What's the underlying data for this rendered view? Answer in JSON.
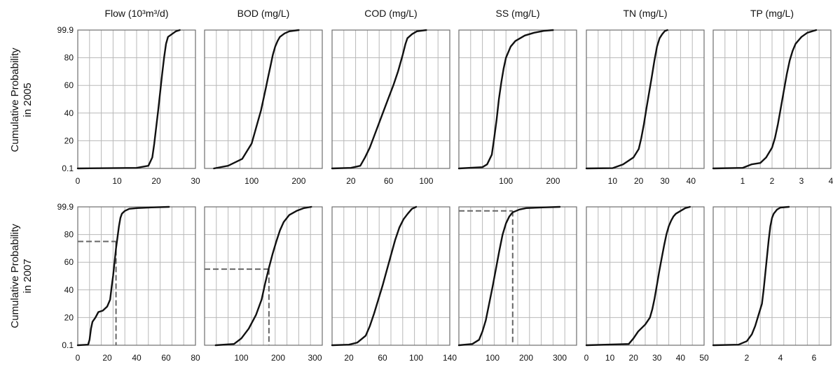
{
  "row_labels": [
    [
      "Cumulative Probability",
      "in 2005"
    ],
    [
      "Cumulative Probability",
      "in 2007"
    ]
  ],
  "chart_data": [
    {
      "type": "line",
      "title": "Flow (10³m³/d)",
      "year": "2005",
      "xlim": [
        0,
        30
      ],
      "xticks": [
        0,
        10,
        20,
        30
      ],
      "xtick_labels": [
        "0",
        "10",
        "20",
        "30"
      ],
      "ytick_labels": [
        "0.1",
        "20",
        "40",
        "60",
        "80",
        "99.9"
      ],
      "series": [
        {
          "x": [
            0,
            15,
            18,
            19,
            19.5,
            20,
            20.5,
            21,
            21.5,
            22,
            22.5,
            23,
            24,
            25,
            26
          ],
          "y": [
            0.1,
            0.5,
            2,
            8,
            18,
            30,
            42,
            55,
            68,
            80,
            90,
            95,
            97,
            99,
            99.9
          ]
        }
      ]
    },
    {
      "type": "line",
      "title": "BOD (mg/L)",
      "year": "2005",
      "xlim": [
        0,
        250
      ],
      "xticks": [
        100,
        200
      ],
      "xtick_labels": [
        "100",
        "200"
      ],
      "ytick_labels": [
        "0.1",
        "20",
        "40",
        "60",
        "80",
        "99.9"
      ],
      "series": [
        {
          "x": [
            20,
            50,
            80,
            100,
            110,
            120,
            125,
            130,
            135,
            140,
            145,
            150,
            155,
            160,
            170,
            180,
            200
          ],
          "y": [
            0.1,
            2,
            7,
            18,
            30,
            42,
            50,
            58,
            66,
            74,
            82,
            88,
            92,
            95,
            97.5,
            99,
            99.9
          ]
        }
      ]
    },
    {
      "type": "line",
      "title": "COD (mg/L)",
      "year": "2005",
      "xlim": [
        0,
        125
      ],
      "xticks": [
        20,
        60,
        100
      ],
      "xtick_labels": [
        "20",
        "60",
        "100"
      ],
      "ytick_labels": [
        "0.1",
        "20",
        "40",
        "60",
        "80",
        "99.9"
      ],
      "series": [
        {
          "x": [
            0,
            20,
            30,
            35,
            40,
            45,
            50,
            55,
            60,
            65,
            70,
            75,
            78,
            80,
            85,
            90,
            100
          ],
          "y": [
            0.1,
            0.5,
            2,
            8,
            15,
            24,
            33,
            42,
            51,
            60,
            70,
            82,
            90,
            94,
            97,
            99,
            99.9
          ]
        }
      ]
    },
    {
      "type": "line",
      "title": "SS (mg/L)",
      "year": "2005",
      "xlim": [
        0,
        250
      ],
      "xticks": [
        100,
        200
      ],
      "xtick_labels": [
        "100",
        "200"
      ],
      "ytick_labels": [
        "0.1",
        "20",
        "40",
        "60",
        "80",
        "99.9"
      ],
      "series": [
        {
          "x": [
            0,
            50,
            60,
            70,
            75,
            80,
            85,
            90,
            95,
            100,
            110,
            120,
            140,
            160,
            180,
            200
          ],
          "y": [
            0.1,
            1,
            3,
            10,
            22,
            35,
            50,
            62,
            72,
            80,
            88,
            92,
            96,
            98,
            99.3,
            99.9
          ]
        }
      ]
    },
    {
      "type": "line",
      "title": "TN (mg/L)",
      "year": "2005",
      "xlim": [
        0,
        45
      ],
      "xticks": [
        10,
        20,
        30,
        40
      ],
      "xtick_labels": [
        "10",
        "20",
        "30",
        "40"
      ],
      "ytick_labels": [
        "0.1",
        "20",
        "40",
        "60",
        "80",
        "99.9"
      ],
      "series": [
        {
          "x": [
            0,
            10,
            14,
            18,
            20,
            21,
            22,
            23,
            24,
            25,
            26,
            27,
            28,
            29,
            30,
            31
          ],
          "y": [
            0.1,
            0.3,
            3,
            8,
            14,
            22,
            32,
            44,
            55,
            66,
            78,
            88,
            94,
            97,
            99.2,
            99.9
          ]
        }
      ]
    },
    {
      "type": "line",
      "title": "TP (mg/L)",
      "year": "2005",
      "xlim": [
        0,
        4
      ],
      "xticks": [
        1,
        2,
        3,
        4
      ],
      "xtick_labels": [
        "1",
        "2",
        "3",
        "4"
      ],
      "ytick_labels": [
        "0.1",
        "20",
        "40",
        "60",
        "80",
        "99.9"
      ],
      "series": [
        {
          "x": [
            0,
            1,
            1.3,
            1.6,
            1.8,
            2,
            2.1,
            2.2,
            2.3,
            2.4,
            2.5,
            2.6,
            2.7,
            2.8,
            3,
            3.2,
            3.5
          ],
          "y": [
            0.1,
            0.5,
            3,
            4,
            8,
            15,
            22,
            32,
            44,
            56,
            68,
            78,
            85,
            90,
            95,
            98,
            99.9
          ]
        }
      ]
    },
    {
      "type": "line",
      "title": "",
      "year": "2007",
      "xlim": [
        0,
        80
      ],
      "xticks": [
        0,
        20,
        40,
        60,
        80
      ],
      "xtick_labels": [
        "0",
        "20",
        "40",
        "60",
        "80"
      ],
      "ytick_labels": [
        "0.1",
        "20",
        "40",
        "60",
        "80",
        "99.9"
      ],
      "guide": {
        "x": 26,
        "y": 75
      },
      "series": [
        {
          "x": [
            0,
            7,
            8,
            9,
            10,
            12,
            14,
            17,
            20,
            22,
            23,
            24,
            25,
            26,
            27,
            28,
            29,
            30,
            32,
            35,
            40,
            50,
            62
          ],
          "y": [
            0.1,
            0.5,
            4,
            12,
            17,
            20,
            24,
            25,
            28,
            33,
            42,
            50,
            60,
            70,
            78,
            86,
            92,
            95,
            97,
            98.5,
            99,
            99.5,
            99.9
          ]
        }
      ]
    },
    {
      "type": "line",
      "title": "",
      "year": "2007",
      "xlim": [
        0,
        320
      ],
      "xticks": [
        100,
        200,
        300
      ],
      "xtick_labels": [
        "100",
        "200",
        "300"
      ],
      "ytick_labels": [
        "0.1",
        "20",
        "40",
        "60",
        "80",
        "99.9"
      ],
      "guide": {
        "x": 175,
        "y": 55
      },
      "series": [
        {
          "x": [
            30,
            80,
            100,
            120,
            140,
            155,
            165,
            175,
            185,
            195,
            205,
            215,
            230,
            250,
            270,
            290
          ],
          "y": [
            0.1,
            1,
            5,
            12,
            22,
            33,
            45,
            56,
            66,
            75,
            83,
            89,
            94,
            97,
            99,
            99.9
          ]
        }
      ]
    },
    {
      "type": "line",
      "title": "",
      "year": "2007",
      "xlim": [
        0,
        140
      ],
      "xticks": [
        20,
        60,
        100,
        140
      ],
      "xtick_labels": [
        "20",
        "60",
        "100",
        "140"
      ],
      "ytick_labels": [
        "0.1",
        "20",
        "40",
        "60",
        "80",
        "99.9"
      ],
      "series": [
        {
          "x": [
            0,
            20,
            30,
            40,
            45,
            50,
            55,
            60,
            65,
            70,
            75,
            80,
            85,
            90,
            95,
            100
          ],
          "y": [
            0.1,
            0.5,
            2,
            7,
            14,
            23,
            33,
            43,
            54,
            65,
            76,
            85,
            91,
            95,
            98.5,
            99.9
          ]
        }
      ]
    },
    {
      "type": "line",
      "title": "",
      "year": "2007",
      "xlim": [
        0,
        350
      ],
      "xticks": [
        100,
        200,
        300
      ],
      "xtick_labels": [
        "100",
        "200",
        "300"
      ],
      "ytick_labels": [
        "0.1",
        "20",
        "40",
        "60",
        "80",
        "99.9"
      ],
      "guide": {
        "x": 160,
        "y": 97
      },
      "series": [
        {
          "x": [
            0,
            40,
            60,
            70,
            80,
            90,
            100,
            110,
            120,
            130,
            140,
            150,
            160,
            180,
            200,
            250,
            300
          ],
          "y": [
            0.1,
            1,
            4,
            10,
            18,
            30,
            42,
            55,
            68,
            80,
            88,
            93,
            96,
            98,
            99,
            99.5,
            99.9
          ]
        }
      ]
    },
    {
      "type": "line",
      "title": "",
      "year": "2007",
      "xlim": [
        0,
        50
      ],
      "xticks": [
        0,
        10,
        20,
        30,
        40,
        50
      ],
      "xtick_labels": [
        "0",
        "10",
        "20",
        "30",
        "40",
        "50"
      ],
      "ytick_labels": [
        "0.1",
        "20",
        "40",
        "60",
        "80",
        "99.9"
      ],
      "series": [
        {
          "x": [
            0,
            18,
            20,
            22,
            25,
            27,
            28,
            29,
            30,
            31,
            32,
            33,
            34,
            35,
            36,
            37,
            38,
            40,
            42,
            44
          ],
          "y": [
            0.1,
            1,
            5,
            10,
            15,
            20,
            26,
            34,
            44,
            54,
            63,
            72,
            80,
            86,
            90,
            93,
            95,
            97,
            99,
            99.9
          ]
        }
      ]
    },
    {
      "type": "line",
      "title": "",
      "year": "2007",
      "xlim": [
        0,
        7
      ],
      "xticks": [
        2,
        4,
        6
      ],
      "xtick_labels": [
        "2",
        "4",
        "6"
      ],
      "ytick_labels": [
        "0.1",
        "20",
        "40",
        "60",
        "80",
        "99.9"
      ],
      "series": [
        {
          "x": [
            0,
            1.5,
            2,
            2.3,
            2.5,
            2.7,
            2.9,
            3,
            3.1,
            3.2,
            3.3,
            3.4,
            3.5,
            3.6,
            3.8,
            4,
            4.5
          ],
          "y": [
            0.1,
            0.5,
            3,
            8,
            14,
            22,
            30,
            40,
            52,
            64,
            76,
            86,
            92,
            95,
            98,
            99.4,
            99.9
          ]
        }
      ]
    }
  ]
}
